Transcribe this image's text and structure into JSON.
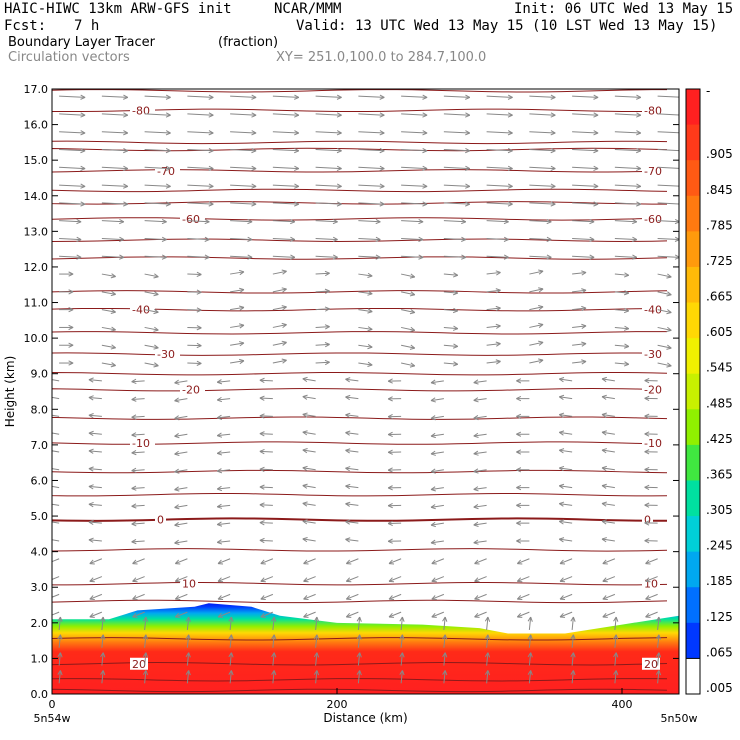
{
  "header": {
    "left_line1": "HAIC-HIWC 13km ARW-GFS init",
    "center_line1": "NCAR/MMM",
    "right_line1": "Init: 06 UTC Wed 13 May 15",
    "left_line2": "Fcst:",
    "fcst_hours": "7 h",
    "right_line2": "Valid: 13 UTC Wed 13 May 15 (10 LST Wed 13 May 15)",
    "field_name": "Boundary Layer Tracer",
    "field_units": "(fraction)",
    "vectors_label": "Circulation vectors",
    "xsect_label": "XY= 251.0,100.0 to 284.7,100.0"
  },
  "chart_data": {
    "type": "cross-section",
    "xlabel": "Distance (km)",
    "ylabel": "Height (km)",
    "xlim": [
      0,
      440
    ],
    "ylim": [
      0.0,
      17.0
    ],
    "x_ticks": [
      "0",
      "200",
      "400"
    ],
    "x_tick_values": [
      0,
      200,
      400
    ],
    "x_end_labels": [
      "5n54w",
      "5n50w"
    ],
    "y_ticks": [
      "0.0",
      "1.0",
      "2.0",
      "3.0",
      "4.0",
      "5.0",
      "6.0",
      "7.0",
      "8.0",
      "9.0",
      "10.0",
      "11.0",
      "12.0",
      "13.0",
      "14.0",
      "15.0",
      "16.0",
      "17.0"
    ],
    "tracer_top_km": {
      "x": [
        0,
        40,
        60,
        100,
        110,
        140,
        160,
        200,
        260,
        300,
        320,
        360,
        400,
        440
      ],
      "y": [
        2.1,
        2.1,
        2.35,
        2.45,
        2.55,
        2.45,
        2.2,
        2.0,
        1.95,
        1.85,
        1.7,
        1.7,
        1.95,
        2.2
      ]
    },
    "temperature_contours_C": [
      {
        "value": "-80",
        "height_km": 16.4
      },
      {
        "value": "-70",
        "height_km": 14.7
      },
      {
        "value": "-60",
        "height_km": 13.35
      },
      {
        "value": "-40",
        "height_km": 10.8
      },
      {
        "value": "-30",
        "height_km": 9.55
      },
      {
        "value": "-20",
        "height_km": 8.55
      },
      {
        "value": "-10",
        "height_km": 7.05
      },
      {
        "value": "0",
        "height_km": 4.9
      },
      {
        "value": "10",
        "height_km": 3.1
      },
      {
        "value": "20",
        "height_km": 0.85
      }
    ],
    "extra_contour_heights_km": [
      16.95,
      15.5,
      15.3,
      14.15,
      13.8,
      12.75,
      12.25,
      11.3,
      10.15,
      9.0,
      7.75,
      6.25,
      5.6,
      4.05,
      2.6,
      1.55,
      0.4,
      0.1
    ],
    "colorbar": {
      "labels": [
        "-",
        ".905",
        ".845",
        ".785",
        ".725",
        ".665",
        ".605",
        ".545",
        ".485",
        ".425",
        ".365",
        ".305",
        ".245",
        ".185",
        ".125",
        ".065",
        ".005"
      ],
      "colors": [
        "#ff2020",
        "#ff3a1a",
        "#ff5a14",
        "#ff7a10",
        "#ff9a0c",
        "#ffba08",
        "#ffd804",
        "#f0f000",
        "#c8f000",
        "#90f000",
        "#40e840",
        "#00e0a0",
        "#00d0d8",
        "#00a8f0",
        "#0070ff",
        "#0038ff",
        "#0000e0"
      ]
    },
    "vector_color": "#888888",
    "contour_color": "#8b1a1a"
  }
}
